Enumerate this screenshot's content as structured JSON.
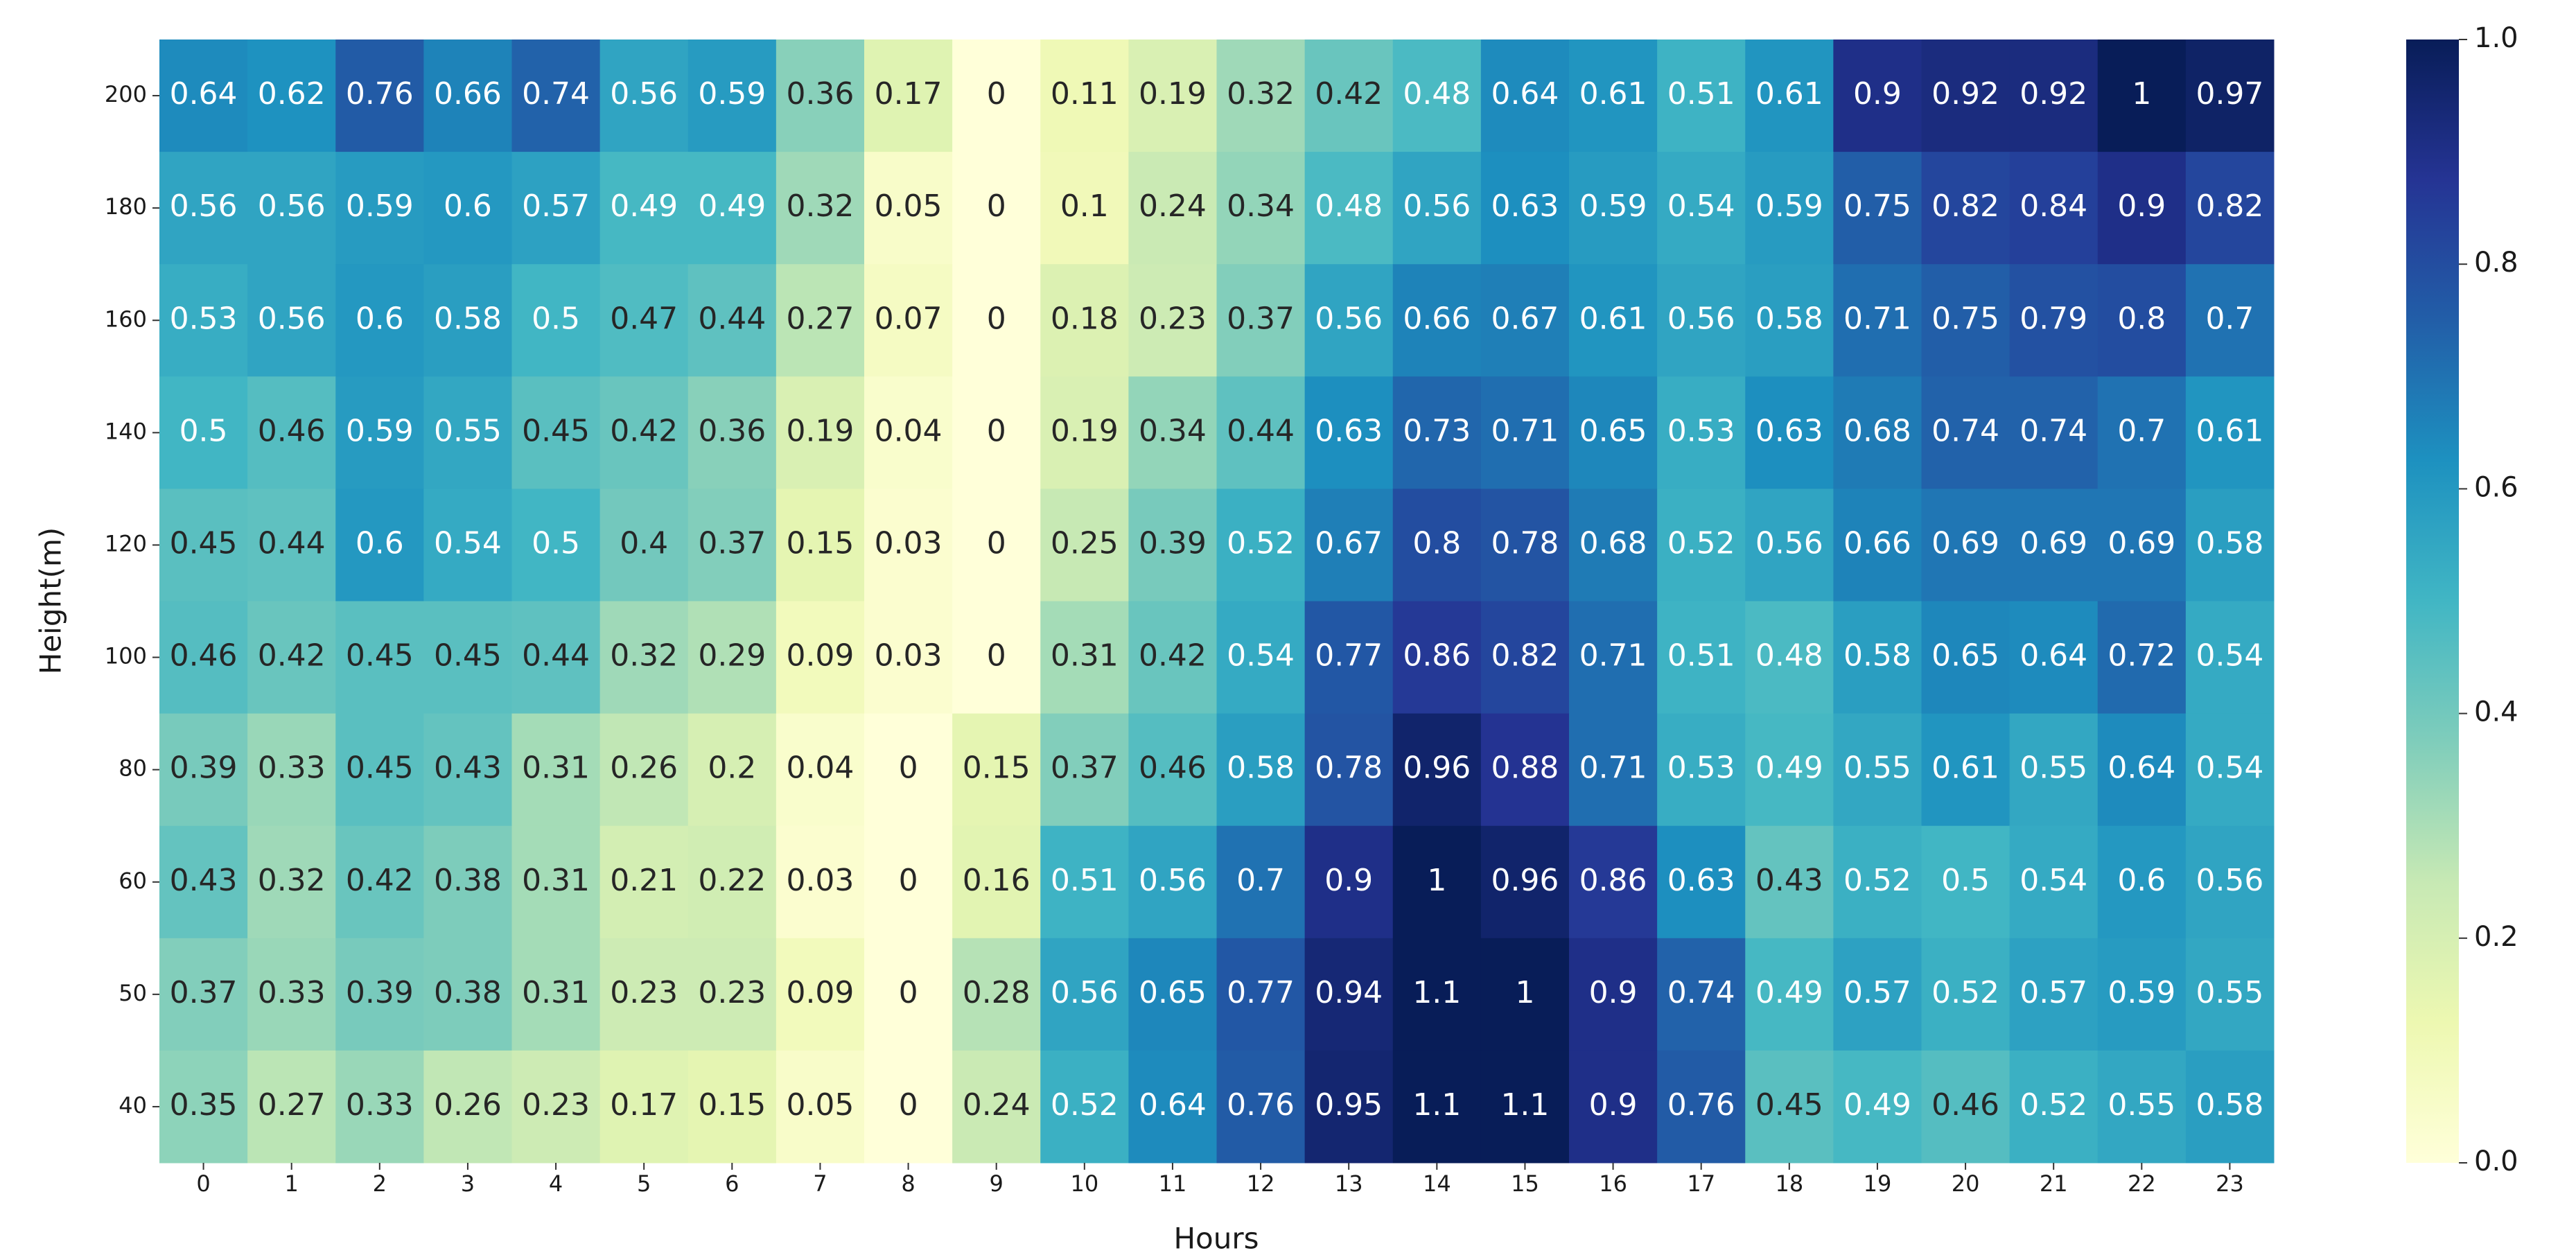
{
  "chart_data": {
    "type": "heatmap",
    "xlabel": "Hours",
    "ylabel": "Height(m)",
    "categories": [
      "0",
      "1",
      "2",
      "3",
      "4",
      "5",
      "6",
      "7",
      "8",
      "9",
      "10",
      "11",
      "12",
      "13",
      "14",
      "15",
      "16",
      "17",
      "18",
      "19",
      "20",
      "21",
      "22",
      "23"
    ],
    "rows": [
      "200",
      "180",
      "160",
      "140",
      "120",
      "100",
      "80",
      "60",
      "50",
      "40"
    ],
    "values": [
      [
        0.64,
        0.62,
        0.76,
        0.66,
        0.74,
        0.56,
        0.59,
        0.36,
        0.17,
        0,
        0.11,
        0.19,
        0.32,
        0.42,
        0.48,
        0.64,
        0.61,
        0.51,
        0.61,
        0.9,
        0.92,
        0.92,
        1,
        0.97
      ],
      [
        0.56,
        0.56,
        0.59,
        0.6,
        0.57,
        0.49,
        0.49,
        0.32,
        0.05,
        0,
        0.1,
        0.24,
        0.34,
        0.48,
        0.56,
        0.63,
        0.59,
        0.54,
        0.59,
        0.75,
        0.82,
        0.84,
        0.9,
        0.82
      ],
      [
        0.53,
        0.56,
        0.6,
        0.58,
        0.5,
        0.47,
        0.44,
        0.27,
        0.07,
        0,
        0.18,
        0.23,
        0.37,
        0.56,
        0.66,
        0.67,
        0.61,
        0.56,
        0.58,
        0.71,
        0.75,
        0.79,
        0.8,
        0.7
      ],
      [
        0.5,
        0.46,
        0.59,
        0.55,
        0.45,
        0.42,
        0.36,
        0.19,
        0.04,
        0,
        0.19,
        0.34,
        0.44,
        0.63,
        0.73,
        0.71,
        0.65,
        0.53,
        0.63,
        0.68,
        0.74,
        0.74,
        0.7,
        0.61
      ],
      [
        0.45,
        0.44,
        0.6,
        0.54,
        0.5,
        0.4,
        0.37,
        0.15,
        0.03,
        0,
        0.25,
        0.39,
        0.52,
        0.67,
        0.8,
        0.78,
        0.68,
        0.52,
        0.56,
        0.66,
        0.69,
        0.69,
        0.69,
        0.58
      ],
      [
        0.46,
        0.42,
        0.45,
        0.45,
        0.44,
        0.32,
        0.29,
        0.09,
        0.03,
        0,
        0.31,
        0.42,
        0.54,
        0.77,
        0.86,
        0.82,
        0.71,
        0.51,
        0.48,
        0.58,
        0.65,
        0.64,
        0.72,
        0.54
      ],
      [
        0.39,
        0.33,
        0.45,
        0.43,
        0.31,
        0.26,
        0.2,
        0.04,
        0,
        0.15,
        0.37,
        0.46,
        0.58,
        0.78,
        0.96,
        0.88,
        0.71,
        0.53,
        0.49,
        0.55,
        0.61,
        0.55,
        0.64,
        0.54
      ],
      [
        0.43,
        0.32,
        0.42,
        0.38,
        0.31,
        0.21,
        0.22,
        0.03,
        0,
        0.16,
        0.51,
        0.56,
        0.7,
        0.9,
        1,
        0.96,
        0.86,
        0.63,
        0.43,
        0.52,
        0.5,
        0.54,
        0.6,
        0.56
      ],
      [
        0.37,
        0.33,
        0.39,
        0.38,
        0.31,
        0.23,
        0.23,
        0.09,
        0,
        0.28,
        0.56,
        0.65,
        0.77,
        0.94,
        1.1,
        1,
        0.9,
        0.74,
        0.49,
        0.57,
        0.52,
        0.57,
        0.59,
        0.55
      ],
      [
        0.35,
        0.27,
        0.33,
        0.26,
        0.23,
        0.17,
        0.15,
        0.05,
        0,
        0.24,
        0.52,
        0.64,
        0.76,
        0.95,
        1.1,
        1.1,
        0.9,
        0.76,
        0.45,
        0.49,
        0.46,
        0.52,
        0.55,
        0.58
      ]
    ],
    "colormap": [
      "#ffffd9",
      "#edf8b1",
      "#c7e9b4",
      "#7fcdbb",
      "#41b6c4",
      "#1d91c0",
      "#225ea8",
      "#253494",
      "#081d58"
    ],
    "zlim": [
      0,
      1
    ],
    "zticks": [
      {
        "value": 0,
        "label": "0.0"
      },
      0.2,
      0.4,
      0.6,
      0.8,
      {
        "value": 1,
        "label": "1.0"
      }
    ]
  }
}
